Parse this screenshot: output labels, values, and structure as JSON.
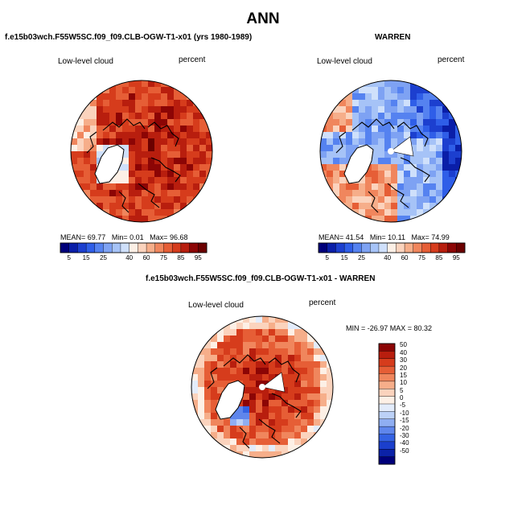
{
  "title": "ANN",
  "chart_data": [
    {
      "type": "heatmap",
      "projection": "north-polar-stereographic",
      "title": "f.e15b03wch.F55W5SC.f09_f09.CLB-OGW-T1-x01 (yrs 1980-1989)",
      "variable_label": "Low-level cloud",
      "units_label": "percent",
      "stats": {
        "mean_label": "MEAN=",
        "mean": "69.77",
        "min_label": "Min=",
        "min": "0.01",
        "max_label": "Max=",
        "max": "96.68"
      },
      "colorbar": {
        "orientation": "horizontal",
        "levels": [
          5,
          10,
          15,
          20,
          25,
          30,
          35,
          40,
          50,
          60,
          70,
          75,
          80,
          85,
          90,
          95
        ],
        "tick_labels": [
          "5",
          "15",
          "25",
          "40",
          "60",
          "75",
          "85",
          "95"
        ],
        "colors": [
          "#00007a",
          "#0a1ea8",
          "#1c3fcf",
          "#2f5ee8",
          "#5582f0",
          "#7ea2f3",
          "#a6c3f7",
          "#cfe0fb",
          "#fdf0e6",
          "#fbd3bd",
          "#f6ae8a",
          "#f0865d",
          "#e65e36",
          "#d63c1c",
          "#b81e0e",
          "#8c0505",
          "#6b0000"
        ]
      },
      "field_description_colors": {
        "land": "#000000",
        "ocean_mostly": "high"
      }
    },
    {
      "type": "heatmap",
      "projection": "north-polar-stereographic",
      "title": "WARREN",
      "variable_label": "Low-level cloud",
      "units_label": "percent",
      "stats": {
        "mean_label": "MEAN=",
        "mean": "41.54",
        "min_label": "Min=",
        "min": "10.11",
        "max_label": "Max=",
        "max": "74.99"
      },
      "colorbar": {
        "orientation": "horizontal",
        "levels": [
          5,
          10,
          15,
          20,
          25,
          30,
          35,
          40,
          50,
          60,
          70,
          75,
          80,
          85,
          90,
          95
        ],
        "tick_labels": [
          "5",
          "15",
          "25",
          "40",
          "60",
          "75",
          "85",
          "95"
        ],
        "colors": [
          "#00007a",
          "#0a1ea8",
          "#1c3fcf",
          "#2f5ee8",
          "#5582f0",
          "#7ea2f3",
          "#a6c3f7",
          "#cfe0fb",
          "#fdf0e6",
          "#fbd3bd",
          "#f6ae8a",
          "#f0865d",
          "#e65e36",
          "#d63c1c",
          "#b81e0e",
          "#8c0505",
          "#6b0000"
        ]
      }
    },
    {
      "type": "heatmap",
      "projection": "north-polar-stereographic",
      "title": "f.e15b03wch.F55W5SC.f09_f09.CLB-OGW-T1-x01 - WARREN",
      "variable_label": "Low-level cloud",
      "units_label": "percent",
      "stats_text": "MIN = -26.97  MAX =  80.32",
      "colorbar": {
        "orientation": "vertical",
        "tick_labels": [
          "50",
          "40",
          "30",
          "20",
          "15",
          "10",
          "5",
          "0",
          "-5",
          "-10",
          "-15",
          "-20",
          "-30",
          "-40",
          "-50"
        ],
        "colors": [
          "#8c0505",
          "#b81e0e",
          "#d63c1c",
          "#e65e36",
          "#f0865d",
          "#f6ae8a",
          "#fbd3bd",
          "#fdf0e6",
          "#e3ecfb",
          "#bcd1f7",
          "#8faef2",
          "#5f86ec",
          "#3462e3",
          "#1b3fcc",
          "#0b22a8",
          "#00007a"
        ]
      }
    }
  ]
}
